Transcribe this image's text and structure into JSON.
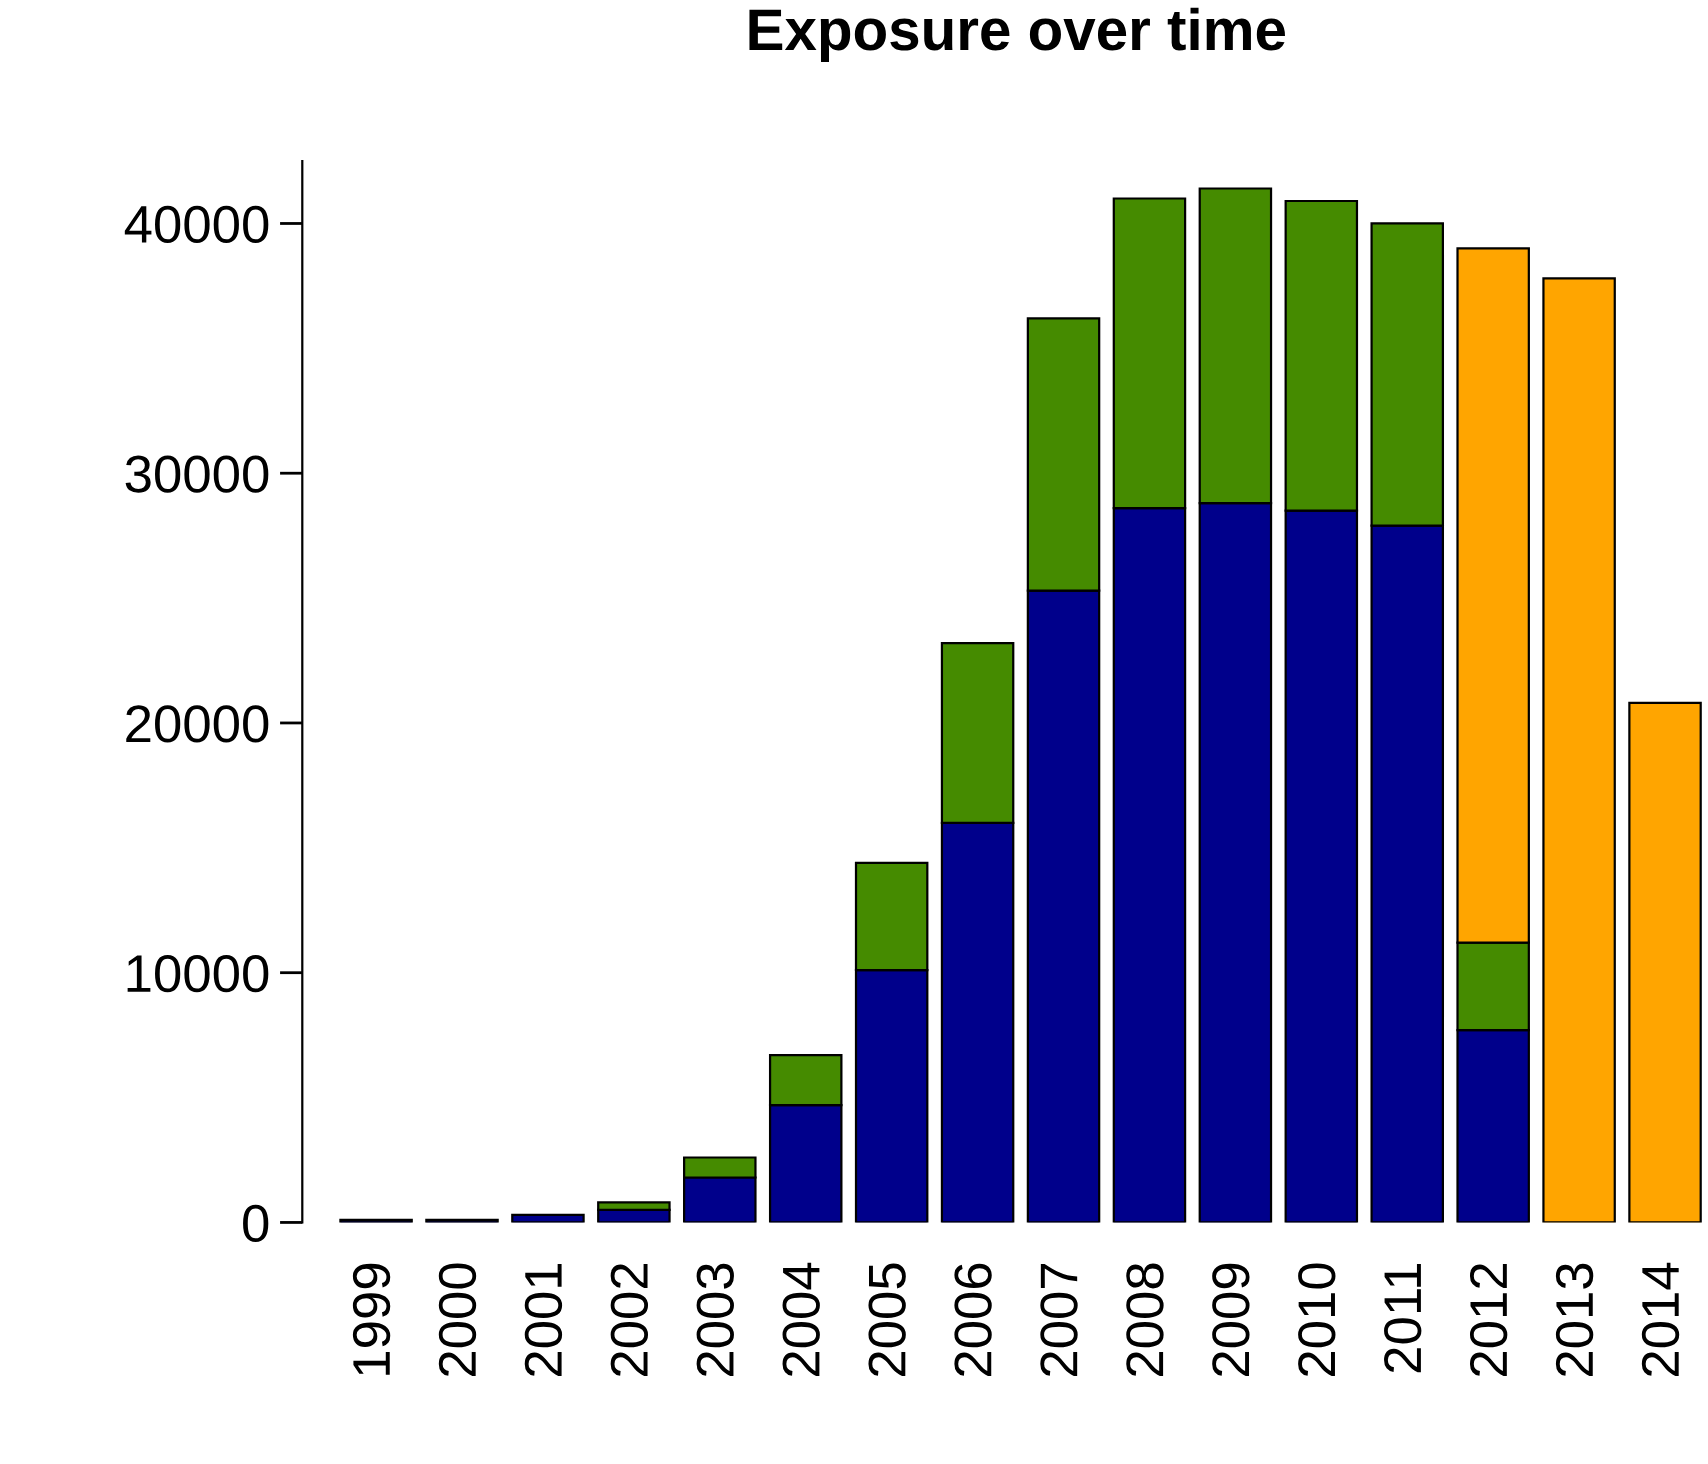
{
  "chart_data": {
    "type": "bar",
    "title": "Exposure over time",
    "stacked": true,
    "categories": [
      "1999",
      "2000",
      "2001",
      "2002",
      "2003",
      "2004",
      "2005",
      "2006",
      "2007",
      "2008",
      "2009",
      "2010",
      "2011",
      "2012",
      "2013",
      "2014"
    ],
    "series": [
      {
        "color": "#00008b",
        "values": [
          100,
          100,
          300,
          500,
          1800,
          4700,
          10100,
          16000,
          25300,
          28600,
          28800,
          28500,
          27900,
          7700,
          null,
          null
        ]
      },
      {
        "color": "#458b00",
        "values": [
          null,
          null,
          null,
          300,
          800,
          2000,
          4300,
          7200,
          10900,
          12400,
          12600,
          12400,
          12100,
          3500,
          null,
          null
        ]
      },
      {
        "color": "#ffa500",
        "values": [
          null,
          null,
          null,
          null,
          null,
          null,
          null,
          null,
          null,
          null,
          null,
          null,
          null,
          27800,
          37800,
          20800
        ]
      }
    ],
    "ylim": [
      0,
      42500
    ],
    "yticks": [
      0,
      10000,
      20000,
      30000,
      40000
    ],
    "grid": false
  }
}
